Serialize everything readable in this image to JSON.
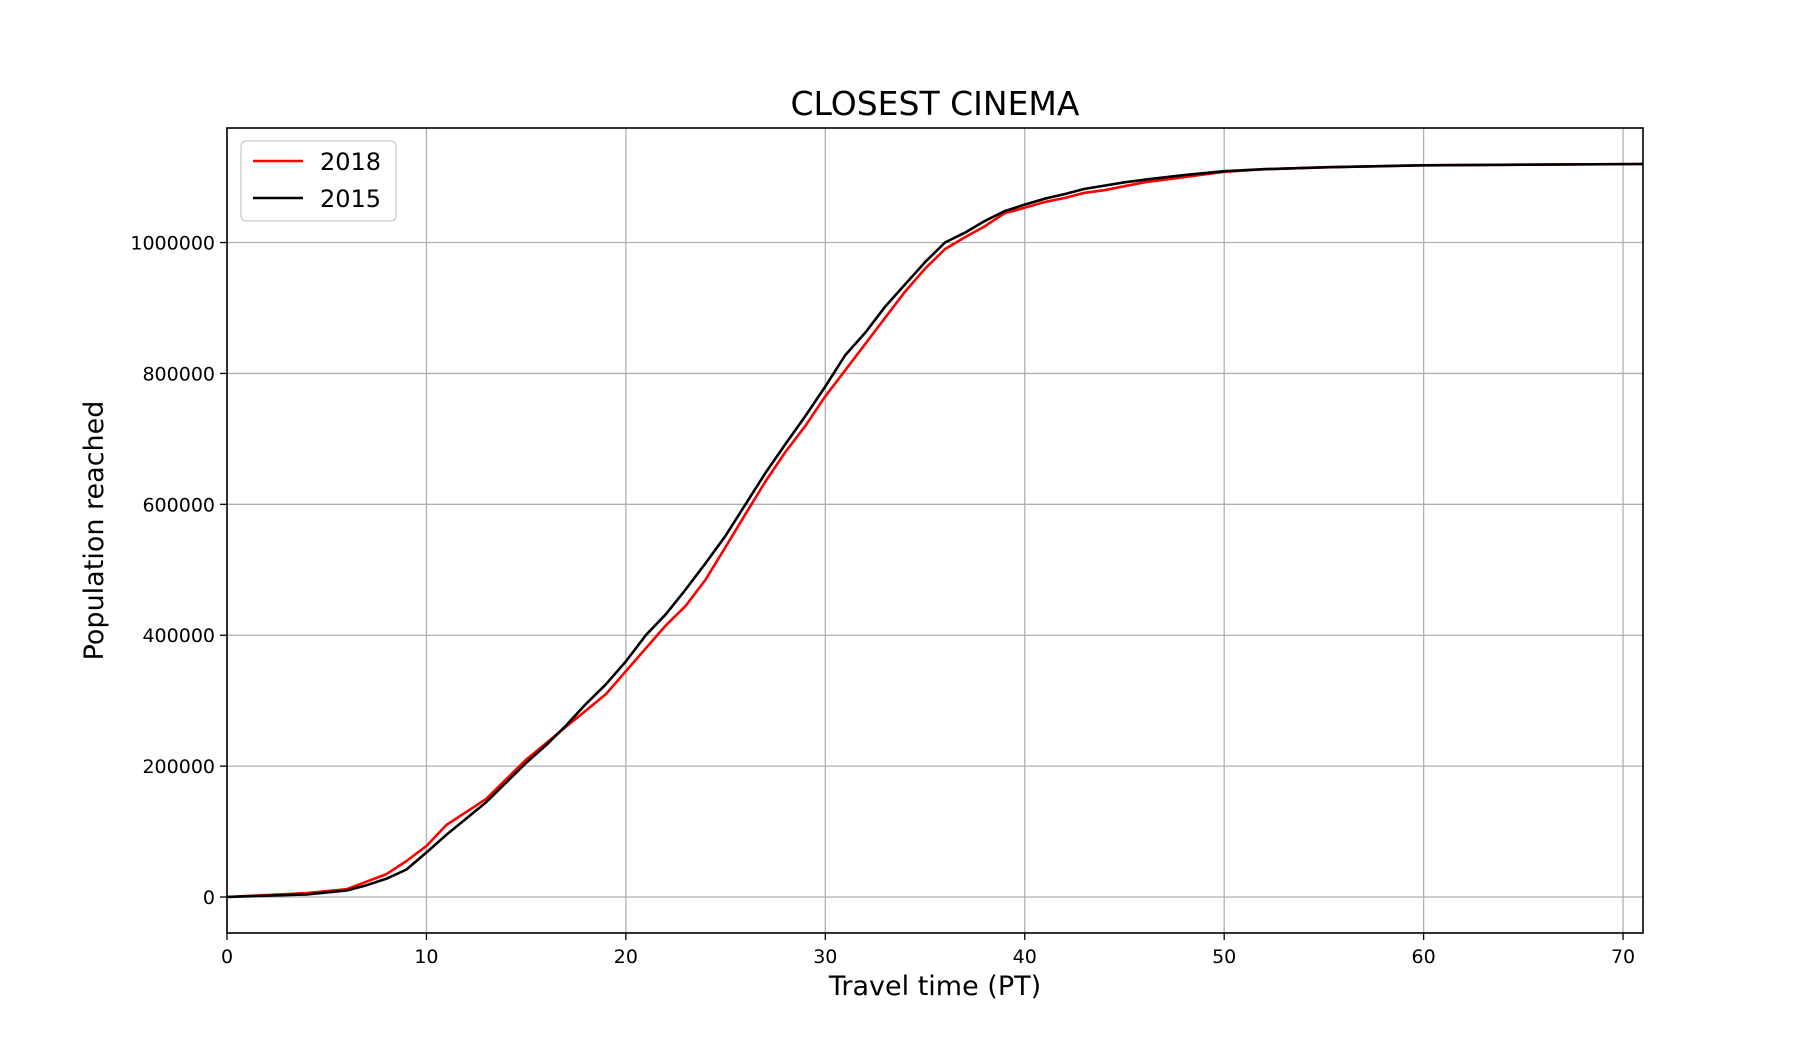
{
  "chart_data": {
    "type": "line",
    "title": "CLOSEST CINEMA",
    "xlabel": "Travel time (PT)",
    "ylabel": "Population reached",
    "xlim": [
      0,
      71
    ],
    "ylim": [
      -55000,
      1175000
    ],
    "xticks": [
      0,
      10,
      20,
      30,
      40,
      50,
      60,
      70
    ],
    "yticks": [
      0,
      200000,
      400000,
      600000,
      800000,
      1000000
    ],
    "grid": true,
    "legend_position": "top-left",
    "series": [
      {
        "name": "2018",
        "color": "#ff0000",
        "x": [
          0,
          2,
          4,
          6,
          8,
          9,
          10,
          11,
          12,
          13,
          14,
          15,
          16,
          17,
          18,
          19,
          20,
          21,
          22,
          23,
          24,
          25,
          26,
          27,
          28,
          29,
          30,
          31,
          32,
          33,
          34,
          35,
          36,
          37,
          38,
          39,
          40,
          41,
          42,
          43,
          44,
          45,
          46,
          48,
          50,
          52,
          55,
          60,
          65,
          71
        ],
        "y": [
          0,
          3000,
          6000,
          12000,
          35000,
          55000,
          78000,
          110000,
          130000,
          150000,
          180000,
          210000,
          235000,
          260000,
          285000,
          310000,
          345000,
          380000,
          415000,
          445000,
          485000,
          535000,
          585000,
          635000,
          680000,
          720000,
          765000,
          805000,
          845000,
          885000,
          925000,
          960000,
          990000,
          1008000,
          1025000,
          1045000,
          1053000,
          1062000,
          1068000,
          1076000,
          1080000,
          1086000,
          1092000,
          1100000,
          1108000,
          1112000,
          1115000,
          1118000,
          1119000,
          1120000
        ]
      },
      {
        "name": "2015",
        "color": "#000000",
        "x": [
          0,
          2,
          4,
          6,
          7,
          8,
          9,
          10,
          11,
          12,
          13,
          14,
          15,
          16,
          17,
          18,
          19,
          20,
          21,
          22,
          23,
          24,
          25,
          26,
          27,
          28,
          29,
          30,
          31,
          32,
          33,
          34,
          35,
          36,
          37,
          38,
          39,
          40,
          41,
          42,
          43,
          44,
          45,
          46,
          48,
          50,
          52,
          55,
          60,
          65,
          71
        ],
        "y": [
          0,
          2000,
          4000,
          10000,
          18000,
          28000,
          42000,
          68000,
          95000,
          120000,
          145000,
          175000,
          205000,
          232000,
          262000,
          295000,
          325000,
          360000,
          400000,
          432000,
          470000,
          510000,
          552000,
          600000,
          648000,
          692000,
          735000,
          780000,
          828000,
          862000,
          902000,
          936000,
          970000,
          1000000,
          1015000,
          1033000,
          1048000,
          1058000,
          1067000,
          1074000,
          1082000,
          1087000,
          1092000,
          1096000,
          1103000,
          1109000,
          1112000,
          1115000,
          1118000,
          1119000,
          1120000
        ]
      }
    ]
  }
}
